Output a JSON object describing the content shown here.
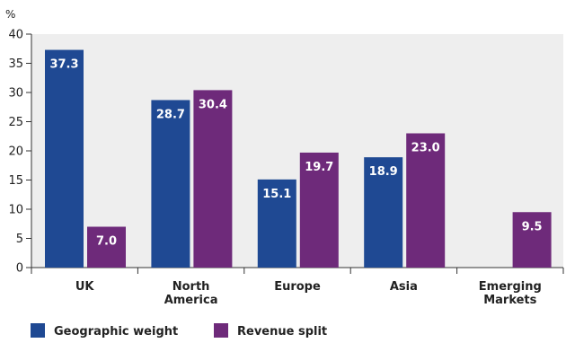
{
  "chart_data": {
    "type": "bar",
    "title": "",
    "xlabel": "",
    "ylabel": "%",
    "ylim": [
      0,
      40
    ],
    "yticks": [
      0,
      5,
      10,
      15,
      20,
      25,
      30,
      35,
      40
    ],
    "categories": [
      [
        "UK"
      ],
      [
        "North",
        "America"
      ],
      [
        "Europe"
      ],
      [
        "Asia"
      ],
      [
        "Emerging",
        "Markets"
      ]
    ],
    "series": [
      {
        "name": "Geographic weight",
        "color": "#1f4993",
        "values": [
          37.3,
          28.7,
          15.1,
          18.9,
          null
        ],
        "labels": [
          "37.3",
          "28.7",
          "15.1",
          "18.9",
          ""
        ]
      },
      {
        "name": "Revenue split",
        "color": "#6e2a7a",
        "values": [
          7.0,
          30.4,
          19.7,
          23.0,
          9.5
        ],
        "labels": [
          "7.0",
          "30.4",
          "19.7",
          "23.0",
          "9.5"
        ]
      }
    ],
    "plot_background": "#eeeeee",
    "grid": false,
    "legend_position": "bottom-left"
  }
}
